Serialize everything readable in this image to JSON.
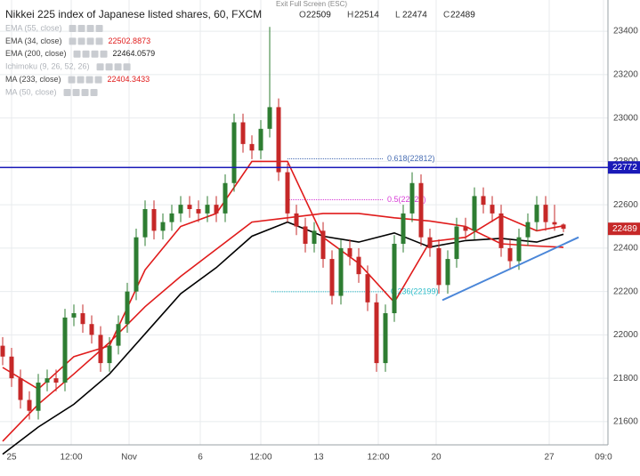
{
  "chart_data": {
    "type": "candlestick",
    "title": "Nikkei 225 index of Japanese listed shares, 60, FXCM",
    "toolbar_hint": "Exit Full Screen (ESC)",
    "ohlc_legend": [
      {
        "label": "O",
        "value": 22509
      },
      {
        "label": "H",
        "value": 22514
      },
      {
        "label": "L",
        "value": 22474
      },
      {
        "label": "C",
        "value": 22489
      }
    ],
    "up_color": "#2e7d32",
    "down_color": "#c62828",
    "open": [
      21950,
      21900,
      21800,
      21700,
      21650,
      21780,
      21800,
      21780,
      22080,
      22100,
      22050,
      22000,
      21870,
      21950,
      22050,
      22200,
      22450,
      22580,
      22480,
      22520,
      22560,
      22600,
      22580,
      22560,
      22600,
      22560,
      22700,
      22980,
      22880,
      22850,
      22950,
      23050,
      22750,
      22560,
      22500,
      22420,
      22480,
      22350,
      22180,
      22400,
      22360,
      22280,
      22150,
      21870,
      22100,
      22420,
      22560,
      22700,
      22450,
      22400,
      22230,
      22350,
      22500,
      22480,
      22640,
      22600,
      22560,
      22400,
      22340,
      22450,
      22520,
      22600,
      22520,
      22509
    ],
    "high": [
      21990,
      21940,
      21840,
      21740,
      21820,
      21840,
      21840,
      22120,
      22140,
      22140,
      22090,
      22040,
      21990,
      22090,
      22240,
      22490,
      22620,
      22620,
      22560,
      22600,
      22640,
      22640,
      22620,
      22640,
      22640,
      22740,
      23020,
      23020,
      22920,
      22990,
      23420,
      23090,
      22790,
      22600,
      22540,
      22520,
      22520,
      22390,
      22440,
      22440,
      22400,
      22320,
      22190,
      22140,
      22460,
      22600,
      22750,
      22740,
      22490,
      22440,
      22390,
      22540,
      22540,
      22680,
      22680,
      22640,
      22600,
      22440,
      22490,
      22560,
      22640,
      22640,
      22600,
      22514
    ],
    "low": [
      21860,
      21760,
      21660,
      21610,
      21610,
      21740,
      21740,
      21740,
      22040,
      22010,
      21960,
      21830,
      21830,
      21910,
      22010,
      22160,
      22410,
      22440,
      22440,
      22480,
      22520,
      22540,
      22520,
      22520,
      22520,
      22520,
      22660,
      22840,
      22810,
      22810,
      22910,
      22710,
      22520,
      22460,
      22380,
      22380,
      22310,
      22140,
      22140,
      22320,
      22240,
      22110,
      21830,
      21830,
      22060,
      22380,
      22520,
      22410,
      22360,
      22190,
      22190,
      22310,
      22440,
      22440,
      22560,
      22520,
      22360,
      22300,
      22300,
      22410,
      22480,
      22480,
      22480,
      22474
    ],
    "close": [
      21900,
      21800,
      21700,
      21650,
      21780,
      21800,
      21780,
      22080,
      22100,
      22050,
      22000,
      21870,
      21950,
      22050,
      22200,
      22450,
      22580,
      22480,
      22520,
      22560,
      22600,
      22580,
      22560,
      22600,
      22560,
      22700,
      22980,
      22880,
      22850,
      22950,
      23050,
      22750,
      22560,
      22500,
      22420,
      22480,
      22350,
      22180,
      22400,
      22360,
      22280,
      22150,
      21870,
      22100,
      22420,
      22560,
      22700,
      22450,
      22400,
      22230,
      22350,
      22500,
      22480,
      22640,
      22600,
      22560,
      22400,
      22340,
      22450,
      22520,
      22600,
      22520,
      22509,
      22489
    ],
    "studies": [
      {
        "name": "EMA (55, close)",
        "visible": false
      },
      {
        "name": "EMA (34, close)",
        "visible": true,
        "color": "#e01b1b",
        "last_value": 22502.8873,
        "x": [
          0,
          4,
          8,
          12,
          16,
          20,
          24,
          28,
          32,
          36,
          40,
          44,
          48,
          52,
          56,
          60,
          63
        ],
        "values": [
          21850,
          21750,
          21900,
          21950,
          22300,
          22500,
          22560,
          22800,
          22800,
          22450,
          22330,
          22150,
          22430,
          22450,
          22550,
          22480,
          22503
        ]
      },
      {
        "name": "EMA (200, close)",
        "visible": true,
        "color": "#000000",
        "last_value": 22464.0579,
        "x": [
          0,
          4,
          8,
          12,
          16,
          20,
          24,
          28,
          32,
          36,
          40,
          44,
          48,
          52,
          56,
          60,
          63
        ],
        "values": [
          21450,
          21575,
          21680,
          21820,
          22005,
          22190,
          22310,
          22455,
          22520,
          22455,
          22428,
          22470,
          22405,
          22435,
          22445,
          22428,
          22464
        ]
      },
      {
        "name": "Ichimoku (9, 26, 52, 26)",
        "visible": false
      },
      {
        "name": "MA (233, close)",
        "visible": true,
        "color": "#e01b1b",
        "last_value": 22404.3433,
        "x": [
          0,
          4,
          8,
          12,
          16,
          20,
          24,
          28,
          32,
          36,
          40,
          44,
          48,
          52,
          56,
          60,
          63
        ],
        "values": [
          21510,
          21680,
          21820,
          21965,
          22130,
          22270,
          22395,
          22520,
          22540,
          22560,
          22560,
          22540,
          22525,
          22500,
          22420,
          22410,
          22404
        ]
      },
      {
        "name": "MA (50, close)",
        "visible": false
      }
    ],
    "hline": 22772,
    "hline_color": "#1a1ab8",
    "fib_levels": [
      {
        "label": "0.618(22812)",
        "value": 22812,
        "color": "#4a6fb5",
        "from": 32,
        "to": 42.8
      },
      {
        "label": "0.5(22623)",
        "value": 22623,
        "color": "#d63ad6",
        "from": 32,
        "to": 42.8
      },
      {
        "label": "0.236(22199)",
        "value": 22199,
        "color": "#2bbcc9",
        "from": 30.2,
        "to": 43.2
      }
    ],
    "trendline": {
      "color": "#4a86d8",
      "x": [
        49.4,
        64.7
      ],
      "values": [
        22160,
        22450
      ]
    },
    "xlim": [
      -0.3,
      68
    ],
    "ylim": [
      21493,
      23544
    ],
    "yticks": [
      21600,
      21800,
      22000,
      22200,
      22400,
      22600,
      22800,
      23000,
      23200,
      23400
    ],
    "xticks": [
      {
        "value": 1,
        "label": "25"
      },
      {
        "value": 7.7,
        "label": "12:00"
      },
      {
        "value": 14.2,
        "label": "Nov"
      },
      {
        "value": 22.2,
        "label": "6"
      },
      {
        "value": 29,
        "label": "12:00"
      },
      {
        "value": 35.5,
        "label": "13"
      },
      {
        "value": 42.2,
        "label": "12:00"
      },
      {
        "value": 48.7,
        "label": "20"
      },
      {
        "value": 61.4,
        "label": "27"
      },
      {
        "value": 67.5,
        "label": "09:0"
      }
    ],
    "grid": true
  }
}
